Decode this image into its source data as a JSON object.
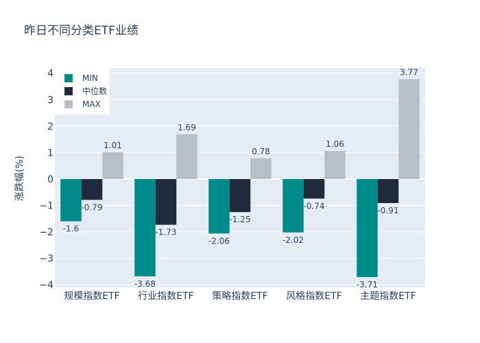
{
  "chart_data": {
    "type": "bar",
    "title": "昨日不同分类ETF业绩",
    "xlabel": "",
    "ylabel": "涨跌幅(%)",
    "ylim": [
      -4.1,
      4.2
    ],
    "yticks": [
      4,
      3,
      2,
      1,
      0,
      -1,
      -2,
      -3,
      -4
    ],
    "ytick_labels": [
      "4",
      "3",
      "2",
      "1",
      "0",
      "−1",
      "−2",
      "−3",
      "−4"
    ],
    "categories": [
      "规模指数ETF",
      "行业指数ETF",
      "策略指数ETF",
      "风格指数ETF",
      "主题指数ETF"
    ],
    "series": [
      {
        "name": "MIN",
        "color": "#008b8b",
        "values": [
          -1.6,
          -3.68,
          -2.06,
          -2.02,
          -3.71
        ],
        "labels": [
          "-1.6",
          "-3.68",
          "-2.06",
          "-2.02",
          "-3.71"
        ]
      },
      {
        "name": "中位数",
        "color": "#1f2a3c",
        "values": [
          -0.79,
          -1.73,
          -1.25,
          -0.74,
          -0.91
        ],
        "labels": [
          "-0.79",
          "-1.73",
          "-1.25",
          "-0.74",
          "-0.91"
        ]
      },
      {
        "name": "MAX",
        "color": "#b8bfc7",
        "values": [
          1.01,
          1.69,
          0.78,
          1.06,
          3.77
        ],
        "labels": [
          "1.01",
          "1.69",
          "0.78",
          "1.06",
          "3.77"
        ]
      }
    ],
    "legend_position": "top-left",
    "grid": true,
    "colors": {
      "plot_bg": "#e5ecf6",
      "grid": "#ffffff",
      "text": "#2a3f5f"
    }
  }
}
